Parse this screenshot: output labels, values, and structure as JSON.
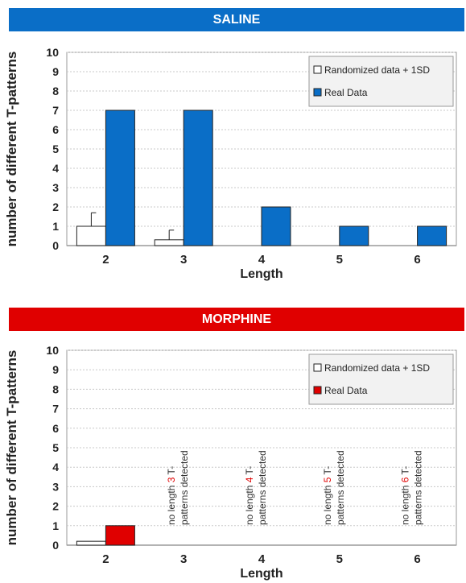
{
  "chart_data": [
    {
      "type": "bar",
      "title": "SALINE",
      "xlabel": "Length",
      "ylabel": "number of different T-patterns",
      "ylim": [
        0,
        10
      ],
      "yticks": [
        "0",
        "1",
        "2",
        "3",
        "4",
        "5",
        "6",
        "7",
        "8",
        "9",
        "10"
      ],
      "categories": [
        "2",
        "3",
        "4",
        "5",
        "6"
      ],
      "series": [
        {
          "name": "Randomized data + 1SD",
          "values": [
            1.0,
            0.3,
            0,
            0,
            0
          ],
          "error": [
            0.7,
            0.5,
            0,
            0,
            0
          ],
          "color": "#ffffff"
        },
        {
          "name": "Real Data",
          "values": [
            7,
            7,
            2,
            1,
            1
          ],
          "color": "#0a6ec7"
        }
      ],
      "legend": "top-right",
      "grid": true,
      "annotations": []
    },
    {
      "type": "bar",
      "title": "MORPHINE",
      "xlabel": "Length",
      "ylabel": "number of different T-patterns",
      "ylim": [
        0,
        10
      ],
      "yticks": [
        "0",
        "1",
        "2",
        "3",
        "4",
        "5",
        "6",
        "7",
        "8",
        "9",
        "10"
      ],
      "categories": [
        "2",
        "3",
        "4",
        "5",
        "6"
      ],
      "series": [
        {
          "name": "Randomized data + 1SD",
          "values": [
            0.2,
            0,
            0,
            0,
            0
          ],
          "color": "#ffffff"
        },
        {
          "name": "Real Data",
          "values": [
            1,
            0,
            0,
            0,
            0
          ],
          "color": "#e00000"
        }
      ],
      "legend": "top-right",
      "grid": true,
      "annotations": [
        {
          "category": "3",
          "prefix": "no length ",
          "number": "3",
          "suffix": " T-",
          "line2": "patterns detected"
        },
        {
          "category": "4",
          "prefix": "no length ",
          "number": "4",
          "suffix": " T-",
          "line2": "patterns detected"
        },
        {
          "category": "5",
          "prefix": "no length ",
          "number": "5",
          "suffix": " T-",
          "line2": "patterns detected"
        },
        {
          "category": "6",
          "prefix": "no length ",
          "number": "6",
          "suffix": " T-",
          "line2": "patterns detected"
        }
      ]
    }
  ]
}
